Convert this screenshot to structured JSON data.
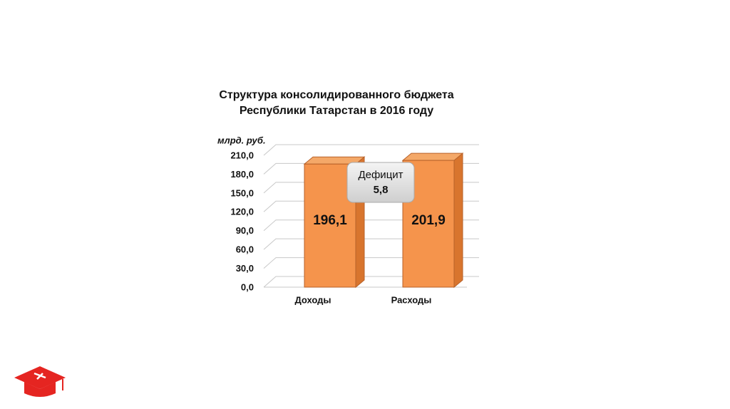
{
  "chart_data": {
    "type": "bar3d",
    "title_lines": [
      "Структура консолидированного бюджета",
      "Республики Татарстан в 2016 году"
    ],
    "y_label": "млрд. руб.",
    "categories": [
      "Доходы",
      "Расходы"
    ],
    "values": [
      196.1,
      201.9
    ],
    "value_labels": [
      "196,1",
      "201,9"
    ],
    "color": "#f5944c",
    "ylim": [
      0,
      210
    ],
    "yticks": [
      {
        "value": 0,
        "label": "0,0"
      },
      {
        "value": 30,
        "label": "30,0"
      },
      {
        "value": 60,
        "label": "60,0"
      },
      {
        "value": 90,
        "label": "90,0"
      },
      {
        "value": 120,
        "label": "120,0"
      },
      {
        "value": 150,
        "label": "150,0"
      },
      {
        "value": 180,
        "label": "180,0"
      },
      {
        "value": 210,
        "label": "210,0"
      }
    ],
    "grid": true,
    "annotation": {
      "text": "Дефицит",
      "value": 5.8,
      "label": "5,8"
    }
  }
}
